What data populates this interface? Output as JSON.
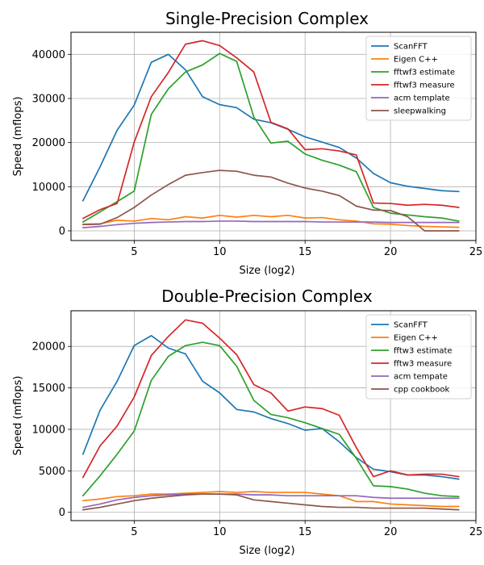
{
  "chart_data": [
    {
      "type": "line",
      "title": "Single-Precision Complex",
      "xlabel": "Size (log2)",
      "ylabel": "Speed (mflops)",
      "xlim": [
        1.3,
        25.0
      ],
      "ylim": [
        -2200,
        45000
      ],
      "xticks": [
        5,
        10,
        15,
        20,
        25
      ],
      "yticks": [
        0,
        10000,
        20000,
        30000,
        40000
      ],
      "grid": true,
      "legend_position": "top-right",
      "x": [
        2,
        3,
        4,
        5,
        6,
        7,
        8,
        9,
        10,
        11,
        12,
        13,
        14,
        15,
        16,
        17,
        18,
        19,
        20,
        21,
        22,
        23,
        24
      ],
      "series": [
        {
          "name": "ScanFFT",
          "color": "#1f77b4",
          "values": [
            6800,
            14500,
            22800,
            28500,
            38200,
            40000,
            36500,
            30400,
            28600,
            27900,
            25300,
            24500,
            23000,
            21300,
            20100,
            18900,
            16500,
            13000,
            10900,
            10100,
            9600,
            9100,
            8900
          ]
        },
        {
          "name": "Eigen C++",
          "color": "#ff7f0e",
          "values": [
            1500,
            1600,
            2400,
            2200,
            2800,
            2500,
            3200,
            2900,
            3500,
            3100,
            3500,
            3200,
            3500,
            2900,
            3000,
            2500,
            2200,
            1600,
            1500,
            1200,
            1000,
            900,
            800
          ]
        },
        {
          "name": "fftwf3 estimate",
          "color": "#2ca02c",
          "values": [
            2000,
            4300,
            6600,
            9000,
            26400,
            32200,
            36000,
            37600,
            40200,
            38400,
            25800,
            19900,
            20300,
            17400,
            16000,
            14900,
            13400,
            5300,
            4000,
            3600,
            3200,
            2900,
            2200
          ]
        },
        {
          "name": "fftwf3 measure",
          "color": "#d62728",
          "values": [
            2800,
            4800,
            6200,
            20100,
            30400,
            35900,
            42300,
            43100,
            42000,
            39200,
            36000,
            24600,
            23100,
            18400,
            18600,
            18100,
            17200,
            6300,
            6200,
            5800,
            6000,
            5800,
            5300
          ]
        },
        {
          "name": "acm template",
          "color": "#9467bd",
          "values": [
            700,
            1000,
            1400,
            1700,
            1900,
            2000,
            2100,
            2100,
            2200,
            2200,
            2100,
            2100,
            2100,
            2100,
            2000,
            2000,
            2000,
            2000,
            1900,
            1900,
            1900,
            1900,
            1900
          ]
        },
        {
          "name": "sleepwalking",
          "color": "#8c564b",
          "values": [
            1400,
            1500,
            3000,
            5300,
            8100,
            10500,
            12600,
            13200,
            13700,
            13500,
            12600,
            12200,
            10800,
            9700,
            9000,
            8000,
            5600,
            4700,
            4600,
            3200,
            0,
            0,
            0
          ]
        }
      ]
    },
    {
      "type": "line",
      "title": "Double-Precision Complex",
      "xlabel": "Size (log2)",
      "ylabel": "Speed (mflops)",
      "xlim": [
        1.3,
        25.0
      ],
      "ylim": [
        -1000,
        24300
      ],
      "xticks": [
        5,
        10,
        15,
        20,
        25
      ],
      "yticks": [
        0,
        5000,
        10000,
        15000,
        20000
      ],
      "grid": true,
      "legend_position": "top-right",
      "x": [
        2,
        3,
        4,
        5,
        6,
        7,
        8,
        9,
        10,
        11,
        12,
        13,
        14,
        15,
        16,
        17,
        18,
        19,
        20,
        21,
        22,
        23,
        24
      ],
      "series": [
        {
          "name": "ScanFFT",
          "color": "#1f77b4",
          "values": [
            7000,
            12300,
            15800,
            20100,
            21300,
            19800,
            19100,
            15800,
            14400,
            12400,
            12100,
            11300,
            10700,
            9900,
            10100,
            8500,
            6600,
            5200,
            4900,
            4500,
            4500,
            4300,
            4000
          ]
        },
        {
          "name": "Eigen C++",
          "color": "#ff7f0e",
          "values": [
            1400,
            1600,
            1900,
            2000,
            2200,
            2200,
            2300,
            2400,
            2500,
            2400,
            2500,
            2400,
            2400,
            2400,
            2200,
            2000,
            1300,
            1300,
            1000,
            900,
            800,
            700,
            700
          ]
        },
        {
          "name": "fftw3 estimate",
          "color": "#2ca02c",
          "values": [
            2000,
            4400,
            7000,
            9800,
            15900,
            18800,
            20100,
            20500,
            20100,
            17600,
            13500,
            11800,
            11400,
            10800,
            10100,
            9400,
            6500,
            3200,
            3100,
            2800,
            2300,
            2000,
            1900
          ]
        },
        {
          "name": "fftw3 measure",
          "color": "#d62728",
          "values": [
            4200,
            8000,
            10400,
            13900,
            18900,
            21200,
            23200,
            22800,
            21000,
            19000,
            15400,
            14400,
            12200,
            12700,
            12500,
            11700,
            7800,
            4300,
            5000,
            4500,
            4600,
            4600,
            4300
          ]
        },
        {
          "name": "acm tempate",
          "color": "#9467bd",
          "values": [
            600,
            1000,
            1500,
            1800,
            2000,
            2100,
            2200,
            2200,
            2200,
            2200,
            2100,
            2100,
            2000,
            2000,
            2000,
            2000,
            2000,
            1800,
            1700,
            1700,
            1700,
            1700,
            1700
          ]
        },
        {
          "name": "cpp cookbook",
          "color": "#8c564b",
          "values": [
            300,
            600,
            1000,
            1400,
            1700,
            1900,
            2100,
            2200,
            2200,
            2100,
            1500,
            1300,
            1100,
            900,
            700,
            600,
            600,
            500,
            500,
            500,
            500,
            400,
            300
          ]
        }
      ]
    }
  ]
}
